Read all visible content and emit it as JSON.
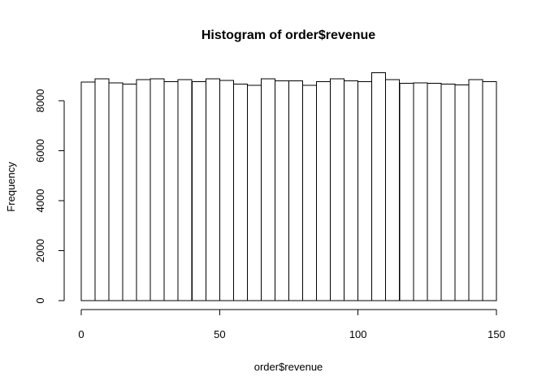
{
  "chart_data": {
    "type": "bar",
    "title": "Histogram of order$revenue",
    "xlabel": "order$revenue",
    "ylabel": "Frequency",
    "bin_width": 5,
    "bin_start": 0,
    "xlim": [
      0,
      150
    ],
    "ylim": [
      0,
      9150
    ],
    "x_ticks": [
      0,
      50,
      100,
      150
    ],
    "y_ticks": [
      0,
      2000,
      4000,
      6000,
      8000
    ],
    "values": [
      8750,
      8870,
      8720,
      8660,
      8850,
      8870,
      8770,
      8850,
      8760,
      8870,
      8820,
      8660,
      8620,
      8870,
      8790,
      8790,
      8620,
      8760,
      8880,
      8800,
      8760,
      9120,
      8840,
      8700,
      8720,
      8700,
      8660,
      8630,
      8850,
      8760
    ],
    "bar_fill": "#ffffff",
    "bar_stroke": "#000000",
    "grid": false
  }
}
